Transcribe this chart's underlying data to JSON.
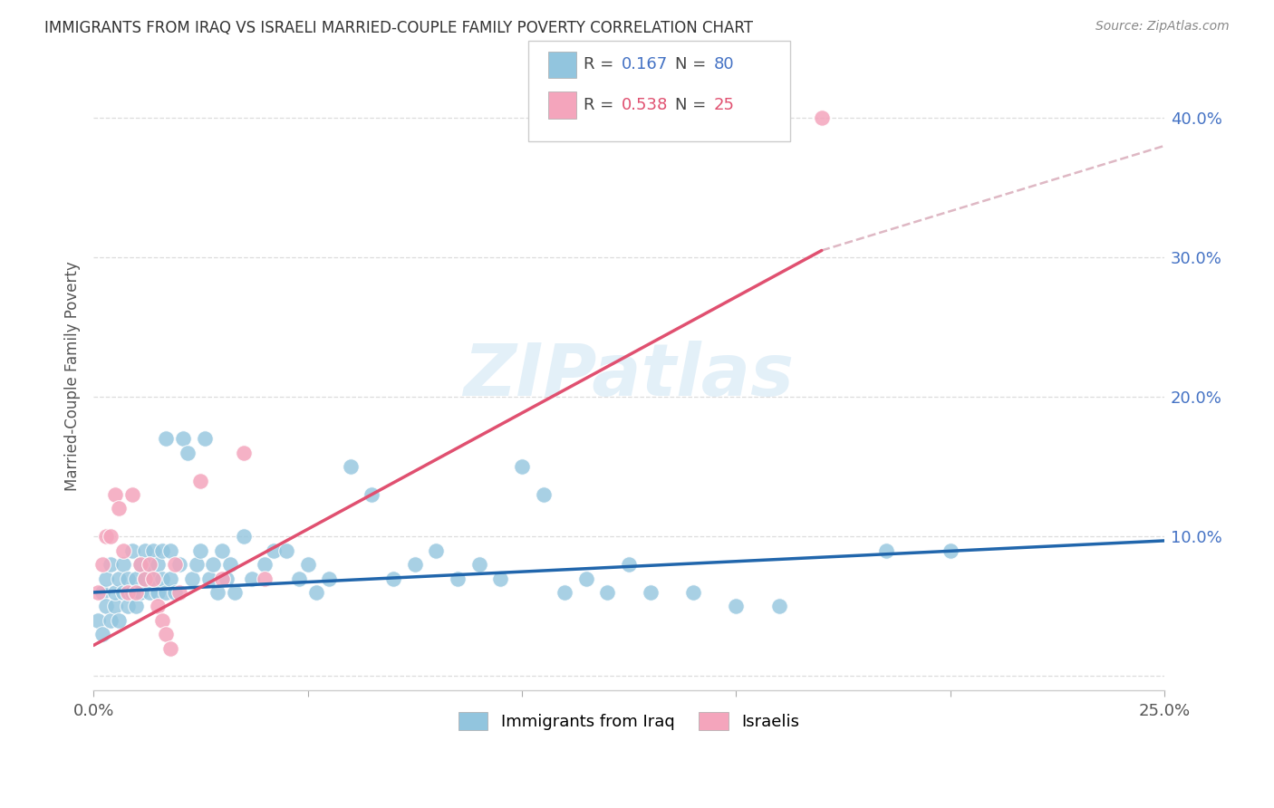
{
  "title": "IMMIGRANTS FROM IRAQ VS ISRAELI MARRIED-COUPLE FAMILY POVERTY CORRELATION CHART",
  "source": "Source: ZipAtlas.com",
  "ylabel": "Married-Couple Family Poverty",
  "xlim": [
    0.0,
    0.25
  ],
  "ylim": [
    -0.01,
    0.44
  ],
  "xticks": [
    0.0,
    0.05,
    0.1,
    0.15,
    0.2,
    0.25
  ],
  "yticks": [
    0.0,
    0.1,
    0.2,
    0.3,
    0.4
  ],
  "xticklabels": [
    "0.0%",
    "",
    "",
    "",
    "",
    "25.0%"
  ],
  "yticklabels": [
    "",
    "10.0%",
    "20.0%",
    "30.0%",
    "40.0%"
  ],
  "blue_color": "#92c5de",
  "pink_color": "#f4a5bc",
  "blue_line_color": "#2166ac",
  "pink_line_color": "#e05070",
  "dashed_line_color": "#d4a0b0",
  "label1": "Immigrants from Iraq",
  "label2": "Israelis",
  "watermark": "ZIPatlas",
  "blue_scatter_x": [
    0.001,
    0.002,
    0.002,
    0.003,
    0.003,
    0.004,
    0.004,
    0.005,
    0.005,
    0.006,
    0.006,
    0.007,
    0.007,
    0.008,
    0.008,
    0.009,
    0.009,
    0.01,
    0.01,
    0.011,
    0.011,
    0.012,
    0.012,
    0.013,
    0.013,
    0.014,
    0.014,
    0.015,
    0.015,
    0.016,
    0.016,
    0.017,
    0.017,
    0.018,
    0.018,
    0.019,
    0.02,
    0.021,
    0.022,
    0.023,
    0.024,
    0.025,
    0.026,
    0.027,
    0.028,
    0.029,
    0.03,
    0.031,
    0.032,
    0.033,
    0.035,
    0.037,
    0.04,
    0.042,
    0.045,
    0.048,
    0.05,
    0.052,
    0.055,
    0.06,
    0.065,
    0.07,
    0.075,
    0.08,
    0.085,
    0.09,
    0.095,
    0.1,
    0.105,
    0.11,
    0.115,
    0.12,
    0.125,
    0.13,
    0.14,
    0.15,
    0.16,
    0.185,
    0.2
  ],
  "blue_scatter_y": [
    0.04,
    0.06,
    0.03,
    0.05,
    0.07,
    0.04,
    0.08,
    0.05,
    0.06,
    0.07,
    0.04,
    0.06,
    0.08,
    0.05,
    0.07,
    0.06,
    0.09,
    0.05,
    0.07,
    0.06,
    0.08,
    0.07,
    0.09,
    0.06,
    0.08,
    0.07,
    0.09,
    0.06,
    0.08,
    0.07,
    0.09,
    0.17,
    0.06,
    0.07,
    0.09,
    0.06,
    0.08,
    0.17,
    0.16,
    0.07,
    0.08,
    0.09,
    0.17,
    0.07,
    0.08,
    0.06,
    0.09,
    0.07,
    0.08,
    0.06,
    0.1,
    0.07,
    0.08,
    0.09,
    0.09,
    0.07,
    0.08,
    0.06,
    0.07,
    0.15,
    0.13,
    0.07,
    0.08,
    0.09,
    0.07,
    0.08,
    0.07,
    0.15,
    0.13,
    0.06,
    0.07,
    0.06,
    0.08,
    0.06,
    0.06,
    0.05,
    0.05,
    0.09,
    0.09
  ],
  "pink_scatter_x": [
    0.001,
    0.002,
    0.003,
    0.004,
    0.005,
    0.006,
    0.007,
    0.008,
    0.009,
    0.01,
    0.011,
    0.012,
    0.013,
    0.014,
    0.015,
    0.016,
    0.017,
    0.018,
    0.019,
    0.02,
    0.025,
    0.03,
    0.035,
    0.04,
    0.17
  ],
  "pink_scatter_y": [
    0.06,
    0.08,
    0.1,
    0.1,
    0.13,
    0.12,
    0.09,
    0.06,
    0.13,
    0.06,
    0.08,
    0.07,
    0.08,
    0.07,
    0.05,
    0.04,
    0.03,
    0.02,
    0.08,
    0.06,
    0.14,
    0.07,
    0.16,
    0.07,
    0.4
  ],
  "blue_trend_x": [
    0.0,
    0.25
  ],
  "blue_trend_y": [
    0.06,
    0.097
  ],
  "pink_trend_x": [
    0.0,
    0.17
  ],
  "pink_trend_y": [
    0.022,
    0.305
  ],
  "dashed_trend_x": [
    0.17,
    0.25
  ],
  "dashed_trend_y": [
    0.305,
    0.38
  ]
}
